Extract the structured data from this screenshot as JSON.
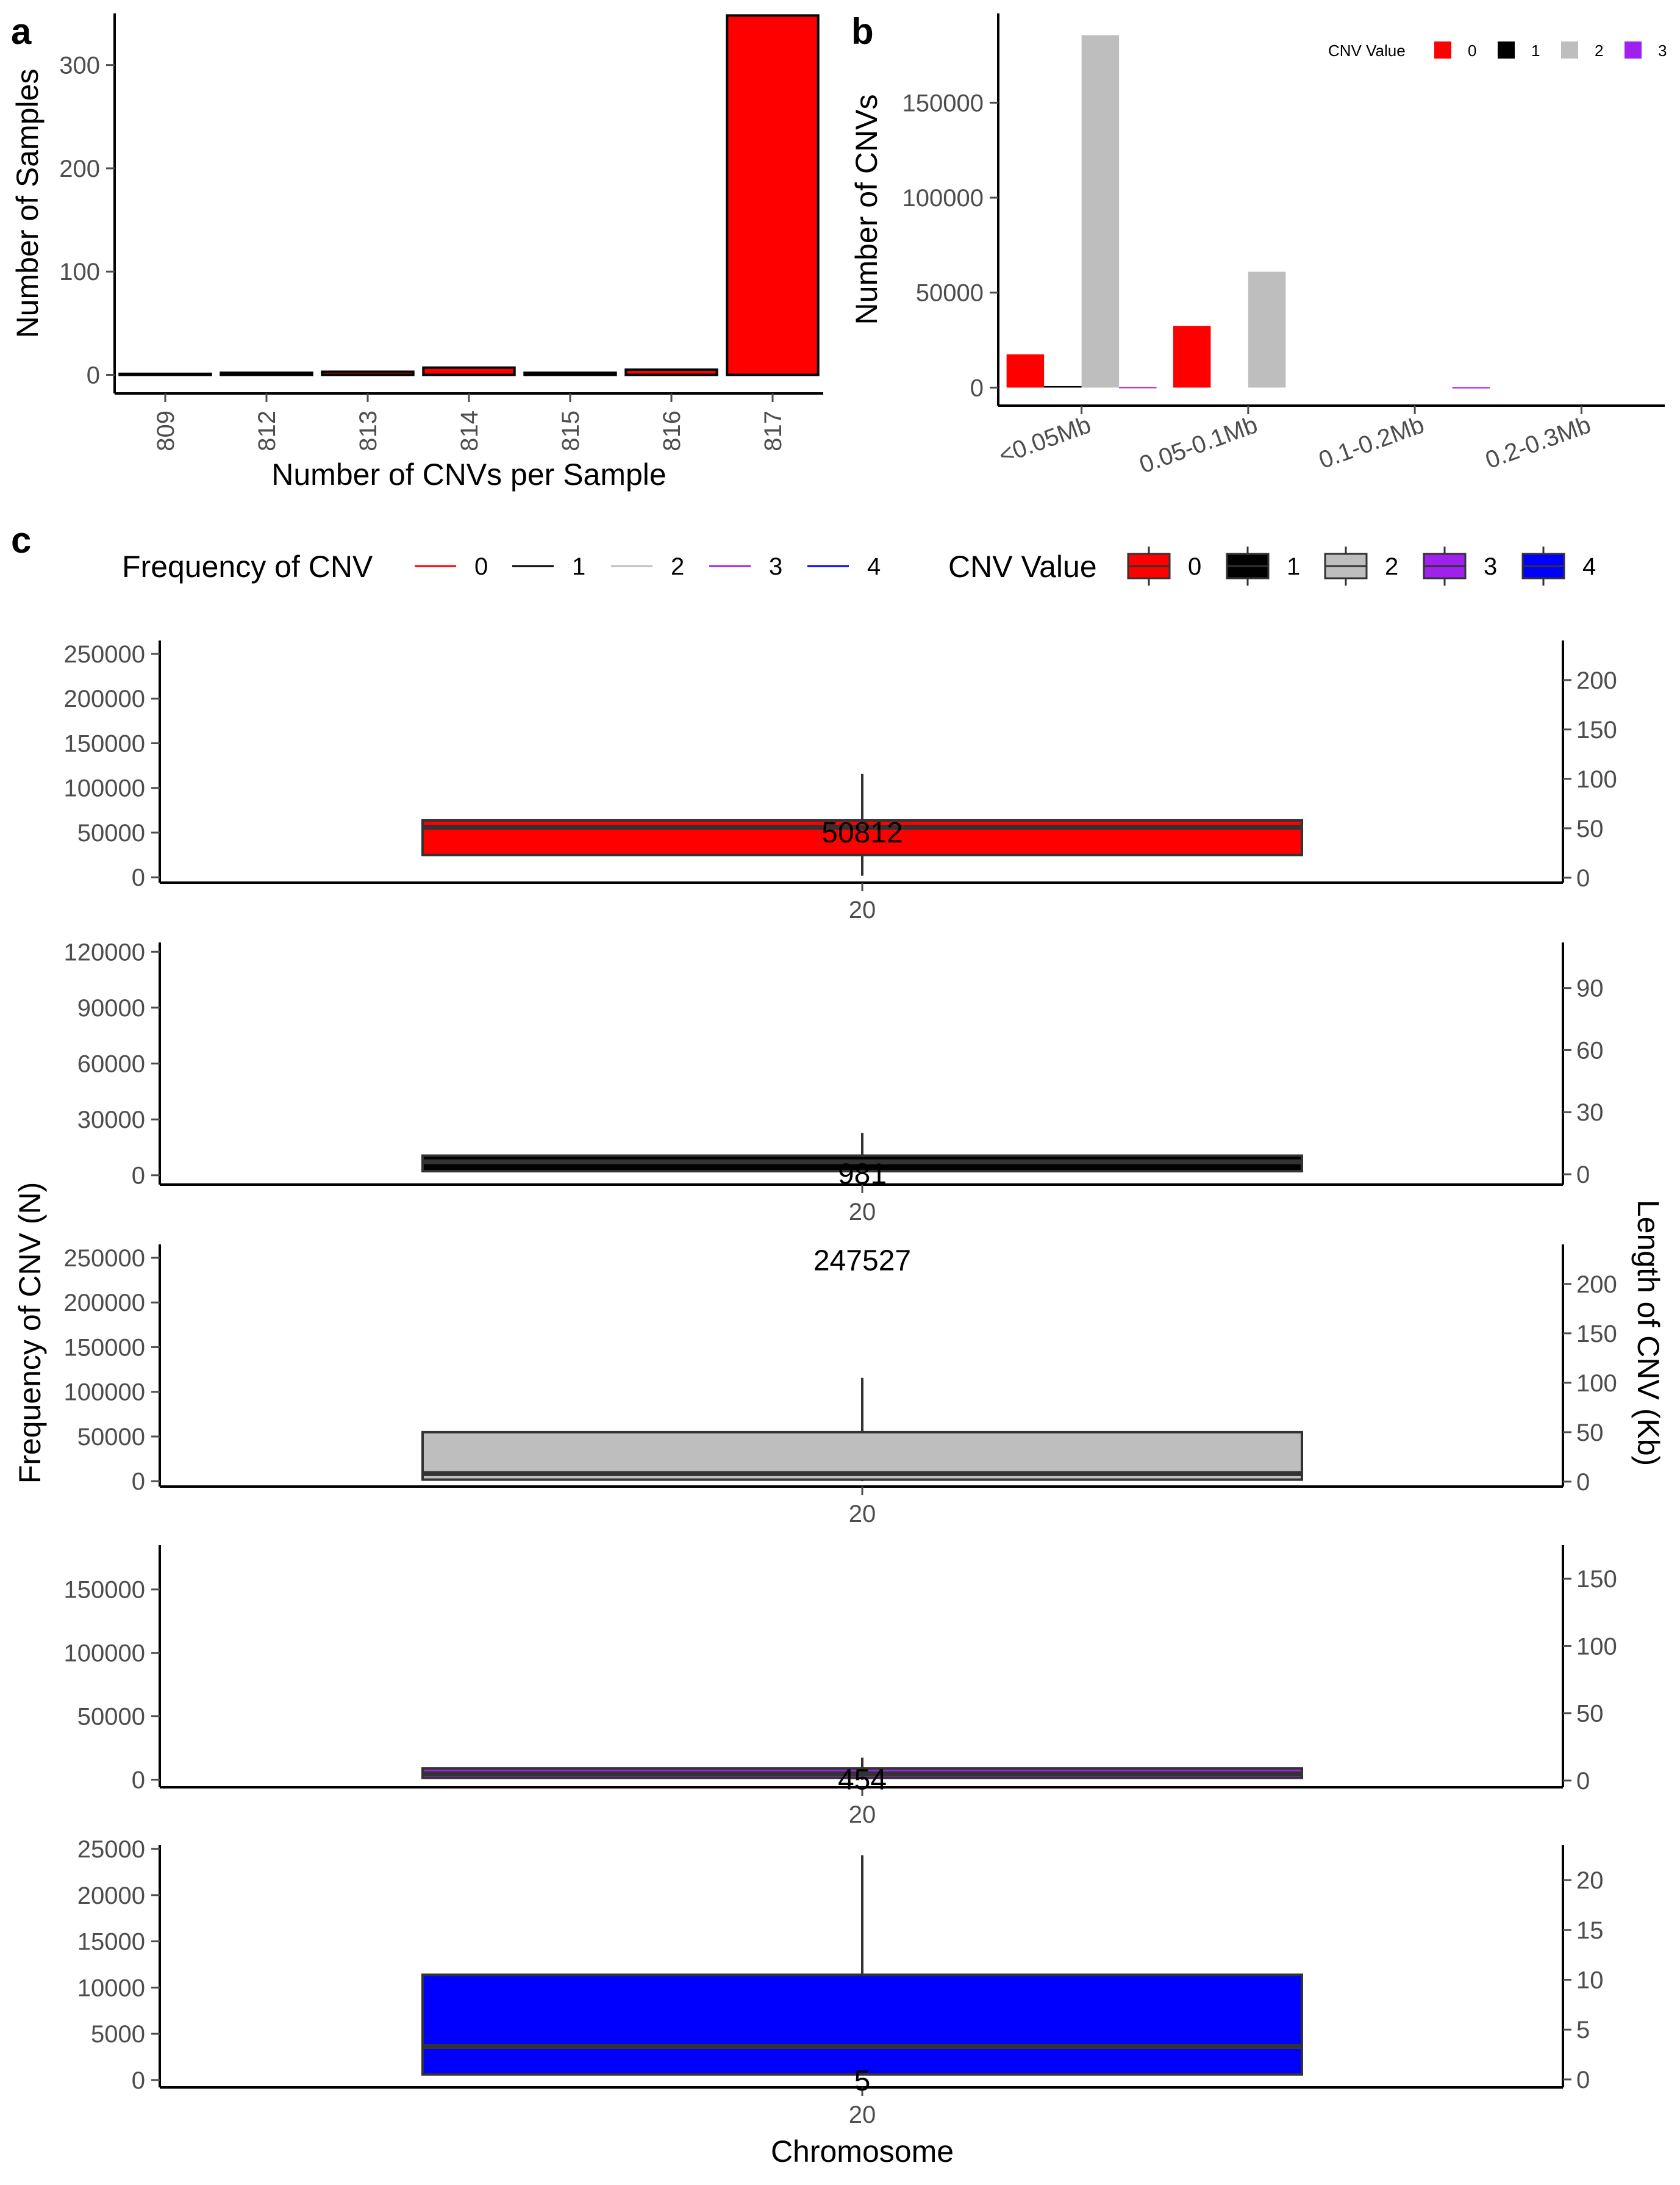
{
  "panel_labels": {
    "a": "a",
    "b": "b",
    "c": "c"
  },
  "colors": {
    "cnv0": "#ff0000",
    "cnv1": "#000000",
    "cnv2": "#bebebe",
    "cnv3": "#a020f0",
    "cnv4": "#0000ff",
    "box_line": "#333333"
  },
  "chart_data": [
    {
      "panel": "a",
      "type": "bar",
      "xlabel": "Number of CNVs per Sample",
      "ylabel": "Number of Samples",
      "categories": [
        "809",
        "812",
        "813",
        "814",
        "815",
        "816",
        "817"
      ],
      "values": [
        1,
        2,
        3,
        7,
        2,
        5,
        348
      ],
      "ylim": [
        -18,
        350
      ],
      "yticks": [
        0,
        100,
        200,
        300
      ],
      "bar_fill": "#ff0000",
      "bar_edge": "#000000",
      "grid": false
    },
    {
      "panel": "b",
      "type": "bar",
      "xlabel": "",
      "ylabel": "Number of CNVs",
      "categories": [
        "<0.05Mb",
        "0.05-0.1Mb",
        "0.1-0.2Mb",
        "0.2-0.3Mb"
      ],
      "legend_title": "CNV Value",
      "legend_position": "top-right",
      "series": [
        {
          "name": "0",
          "color": "#ff0000",
          "values": [
            17500,
            32500,
            0,
            0
          ]
        },
        {
          "name": "1",
          "color": "#000000",
          "values": [
            800,
            0,
            0,
            0
          ]
        },
        {
          "name": "2",
          "color": "#bebebe",
          "values": [
            185500,
            61000,
            0,
            0
          ]
        },
        {
          "name": "3",
          "color": "#a020f0",
          "values": [
            300,
            0,
            200,
            0
          ]
        }
      ],
      "ylim": [
        -9500,
        197000
      ],
      "yticks": [
        0,
        50000,
        100000,
        150000
      ],
      "grid": false
    },
    {
      "panel": "c",
      "type": "boxplot",
      "xlabel": "Chromosome",
      "ylabel_left": "Frequency of CNV (N)",
      "ylabel_right": "Length of CNV (Kb)",
      "legend_line_title": "Frequency of CNV",
      "legend_box_title": "CNV Value",
      "legend_entries": [
        "0",
        "1",
        "2",
        "3",
        "4"
      ],
      "legend_position": "top",
      "grid": false,
      "facets": [
        {
          "cnv": "0",
          "color": "#ff0000",
          "x_label": "20",
          "count_label": "50812",
          "count_value": 50812,
          "left_ylim": [
            -6000,
            265000
          ],
          "left_ticks": [
            0,
            50000,
            100000,
            150000,
            200000,
            250000
          ],
          "right_ylim": [
            -5,
            240
          ],
          "right_ticks": [
            0,
            50,
            100,
            150,
            200
          ],
          "box_kb": {
            "q1": 23,
            "median": 51,
            "q3": 58,
            "whisker_low": 2,
            "whisker_high": 105
          }
        },
        {
          "cnv": "1",
          "color": "#000000",
          "x_label": "20",
          "count_label": "981",
          "count_value": 981,
          "left_ylim": [
            -5000,
            125000
          ],
          "left_ticks": [
            0,
            30000,
            60000,
            90000,
            120000
          ],
          "right_ylim": [
            -5,
            112
          ],
          "right_ticks": [
            0,
            30,
            60,
            90
          ],
          "box_kb": {
            "q1": 1.5,
            "median": 6,
            "q3": 9,
            "whisker_low": 0.5,
            "whisker_high": 20
          }
        },
        {
          "cnv": "2",
          "color": "#bebebe",
          "x_label": "20",
          "count_label": "247527",
          "count_value": 247527,
          "left_ylim": [
            -6000,
            265000
          ],
          "left_ticks": [
            0,
            50000,
            100000,
            150000,
            200000,
            250000
          ],
          "right_ylim": [
            -5,
            240
          ],
          "right_ticks": [
            0,
            50,
            100,
            150,
            200
          ],
          "box_kb": {
            "q1": 2,
            "median": 8,
            "q3": 50,
            "whisker_low": 0.5,
            "whisker_high": 105
          }
        },
        {
          "cnv": "3",
          "color": "#a020f0",
          "x_label": "20",
          "count_label": "454",
          "count_value": 454,
          "left_ylim": [
            -6000,
            185000
          ],
          "left_ticks": [
            0,
            50000,
            100000,
            150000
          ],
          "right_ylim": [
            -5,
            175
          ],
          "right_ticks": [
            0,
            50,
            100,
            150
          ],
          "box_kb": {
            "q1": 2,
            "median": 5,
            "q3": 9,
            "whisker_low": 0.5,
            "whisker_high": 17
          }
        },
        {
          "cnv": "4",
          "color": "#0000ff",
          "x_label": "20",
          "count_label": "5",
          "count_value": 5,
          "left_ylim": [
            -800,
            25400
          ],
          "left_ticks": [
            0,
            5000,
            10000,
            15000,
            20000,
            25000
          ],
          "right_ylim": [
            -0.8,
            23.5
          ],
          "right_ticks": [
            0,
            5,
            10,
            15,
            20
          ],
          "box_kb": {
            "q1": 0.5,
            "median": 3.3,
            "q3": 10.5,
            "whisker_low": 0.4,
            "whisker_high": 22.5
          }
        }
      ]
    }
  ]
}
